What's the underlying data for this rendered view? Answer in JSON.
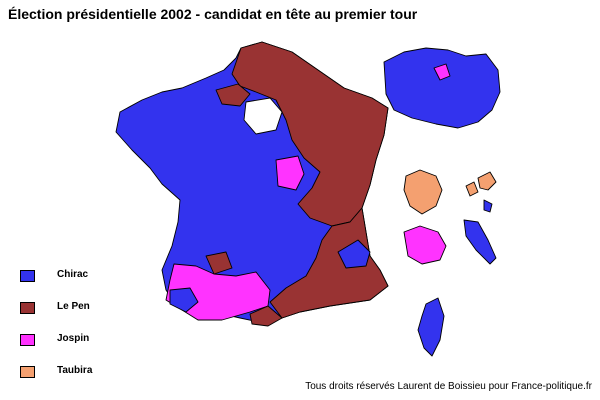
{
  "title": "Élection présidentielle 2002 - candidat en tête au premier tour",
  "colors": {
    "chirac": "#3333ee",
    "le_pen": "#993333",
    "jospin": "#ff33ff",
    "taubira": "#f4a070"
  },
  "legend": [
    {
      "key": "chirac",
      "label": "Chirac",
      "color": "#3333ee"
    },
    {
      "key": "le_pen",
      "label": "Le Pen",
      "color": "#993333"
    },
    {
      "key": "jospin",
      "label": "Jospin",
      "color": "#ff33ff"
    },
    {
      "key": "taubira",
      "label": "Taubira",
      "color": "#f4a070"
    }
  ],
  "credit": "Tous droits réservés Laurent de Boissieu pour France-politique.fr"
}
